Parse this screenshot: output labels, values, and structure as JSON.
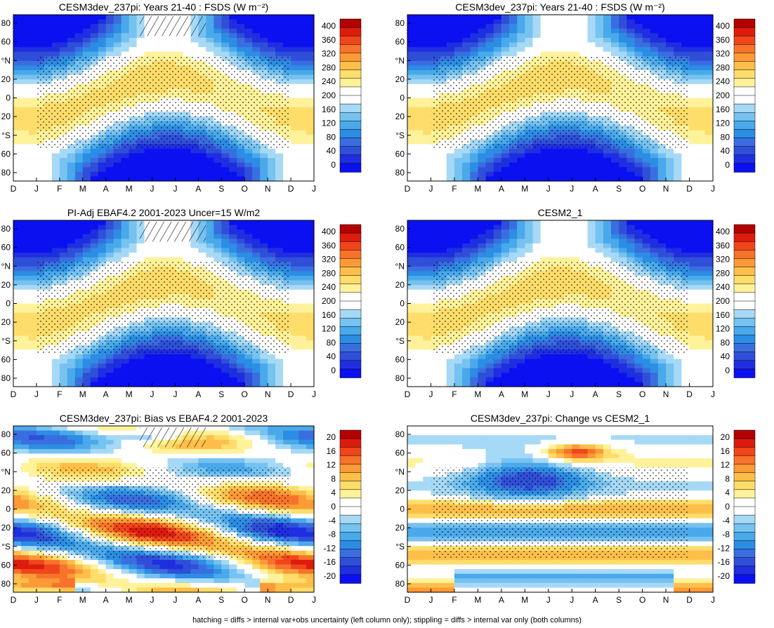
{
  "figure": {
    "footnote": "hatching = diffs > internal var+obs uncertainty (left column only); stippling = diffs > internal var only (both columns)"
  },
  "months": [
    "D",
    "J",
    "F",
    "M",
    "A",
    "M",
    "J",
    "J",
    "A",
    "S",
    "O",
    "N",
    "D",
    "J"
  ],
  "lat_labels": [
    "80",
    "60",
    "°N",
    "20",
    "0",
    "20",
    "°S",
    "60",
    "80"
  ],
  "colorbars": {
    "abs": {
      "labels": [
        "400",
        "360",
        "320",
        "280",
        "240",
        "200",
        "160",
        "120",
        "80",
        "40",
        "0"
      ],
      "colors": [
        "#b30000",
        "#dd1c0d",
        "#f0451a",
        "#f7722a",
        "#fb9a36",
        "#fdbf4a",
        "#fedd6a",
        "#fff29a",
        "#ffffff",
        "#ffffff",
        "#a6d9f5",
        "#76c2f0",
        "#4aa9ea",
        "#2b8de3",
        "#3a6ee0",
        "#2f4fd8",
        "#1f2ee0",
        "#0b10f0"
      ]
    },
    "diff": {
      "labels": [
        "20",
        "16",
        "12",
        "8",
        "4",
        "0",
        "-4",
        "-8",
        "-12",
        "-16",
        "-20"
      ],
      "colors": [
        "#b30000",
        "#dd1c0d",
        "#f0451a",
        "#f7722a",
        "#fb9a36",
        "#fdbf4a",
        "#fedd6a",
        "#fff29a",
        "#ffffff",
        "#ffffff",
        "#a6d9f5",
        "#76c2f0",
        "#4aa9ea",
        "#2b8de3",
        "#3a6ee0",
        "#2f4fd8",
        "#1f2ee0",
        "#0b10f0"
      ]
    }
  },
  "chart_data": [
    {
      "id": "p1",
      "type": "heatmap",
      "title": "CESM3dev_237pi: Years 21-40 : FSDS (W m⁻²)",
      "variable": "FSDS",
      "units": "W m-2",
      "zlim": [
        0,
        400
      ],
      "x": "month (D..J)",
      "y": "latitude (-90..90)",
      "pattern": "insolation",
      "hatching": true,
      "stippling": true
    },
    {
      "id": "p2",
      "type": "heatmap",
      "title": "CESM3dev_237pi: Years 21-40 : FSDS (W m⁻²)",
      "variable": "FSDS",
      "units": "W m-2",
      "zlim": [
        0,
        400
      ],
      "x": "month (D..J)",
      "y": "latitude (-90..90)",
      "pattern": "insolation",
      "hatching": false,
      "stippling": true
    },
    {
      "id": "p3",
      "type": "heatmap",
      "title": "PI-Adj EBAF4.2 2001-2023 Uncer=15 W/m2",
      "variable": "FSDS",
      "units": "W m-2",
      "zlim": [
        0,
        400
      ],
      "x": "month (D..J)",
      "y": "latitude (-90..90)",
      "pattern": "insolation",
      "hatching": true,
      "stippling": true
    },
    {
      "id": "p4",
      "type": "heatmap",
      "title": "CESM2_1",
      "variable": "FSDS",
      "units": "W m-2",
      "zlim": [
        0,
        400
      ],
      "x": "month (D..J)",
      "y": "latitude (-90..90)",
      "pattern": "insolation",
      "hatching": false,
      "stippling": true
    },
    {
      "id": "p5",
      "type": "heatmap",
      "title": "CESM3dev_237pi: Bias vs EBAF4.2 2001-2023",
      "variable": "FSDS difference",
      "units": "W m-2",
      "zlim": [
        -20,
        20
      ],
      "x": "month (D..J)",
      "y": "latitude (-90..90)",
      "pattern": "bias",
      "hatching": true,
      "stippling": true
    },
    {
      "id": "p6",
      "type": "heatmap",
      "title": "CESM3dev_237pi: Change vs CESM2_1",
      "variable": "FSDS difference",
      "units": "W m-2",
      "zlim": [
        -20,
        20
      ],
      "x": "month (D..J)",
      "y": "latitude (-90..90)",
      "pattern": "change",
      "hatching": false,
      "stippling": true
    }
  ]
}
